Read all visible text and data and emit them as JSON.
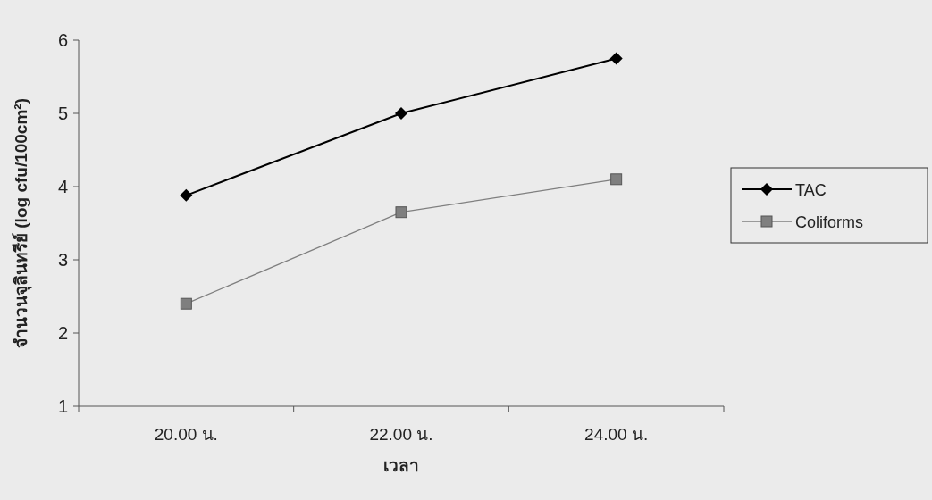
{
  "chart_data": {
    "type": "line",
    "xlabel": "เวลา",
    "ylabel": "จำนวนจุลินทรีย์ (log cfu/100cm²)",
    "categories": [
      "20.00 น.",
      "22.00 น.",
      "24.00 น."
    ],
    "series": [
      {
        "name": "TAC",
        "color": "#000000",
        "marker": "diamond",
        "values": [
          3.88,
          5.0,
          5.75
        ]
      },
      {
        "name": "Coliforms",
        "color": "#7f7f7f",
        "marker": "square",
        "values": [
          2.4,
          3.65,
          4.1
        ]
      }
    ],
    "ylim": [
      1,
      6
    ],
    "yticks": [
      1,
      2,
      3,
      4,
      5,
      6
    ],
    "grid": false,
    "legend": "right"
  }
}
